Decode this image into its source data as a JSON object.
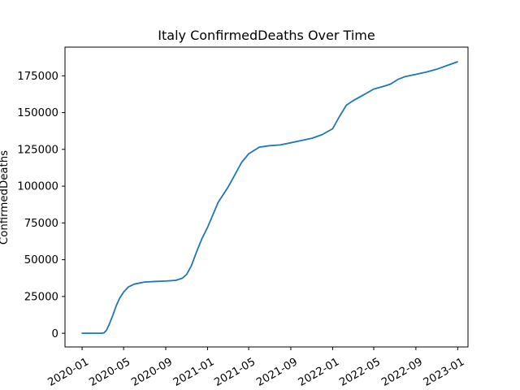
{
  "chart_data": {
    "type": "line",
    "title": "Italy  ConfirmedDeaths Over Time",
    "xlabel": "",
    "ylabel": "ConfirmedDeaths",
    "x_ticks": [
      "2020-01",
      "2020-05",
      "2020-09",
      "2021-01",
      "2021-05",
      "2021-09",
      "2022-01",
      "2022-05",
      "2022-09",
      "2023-01"
    ],
    "y_ticks": [
      "0",
      "25000",
      "50000",
      "75000",
      "100000",
      "125000",
      "150000",
      "175000"
    ],
    "ylim": [
      -9300,
      194500
    ],
    "xlim": [
      "2019-11-12",
      "2023-01-31"
    ],
    "grid": false,
    "series": [
      {
        "color": "#1f77b4",
        "points": [
          [
            "2020-01-01",
            0
          ],
          [
            "2020-02-20",
            0
          ],
          [
            "2020-02-28",
            50
          ],
          [
            "2020-03-05",
            300
          ],
          [
            "2020-03-12",
            2000
          ],
          [
            "2020-03-20",
            6000
          ],
          [
            "2020-03-31",
            12500
          ],
          [
            "2020-04-10",
            19000
          ],
          [
            "2020-04-20",
            24000
          ],
          [
            "2020-05-01",
            28000
          ],
          [
            "2020-05-15",
            31500
          ],
          [
            "2020-06-01",
            33400
          ],
          [
            "2020-07-01",
            34800
          ],
          [
            "2020-08-01",
            35200
          ],
          [
            "2020-09-01",
            35500
          ],
          [
            "2020-10-01",
            36000
          ],
          [
            "2020-10-20",
            37500
          ],
          [
            "2020-11-01",
            40000
          ],
          [
            "2020-11-15",
            46000
          ],
          [
            "2020-12-01",
            56000
          ],
          [
            "2020-12-15",
            64000
          ],
          [
            "2021-01-01",
            72000
          ],
          [
            "2021-02-01",
            89000
          ],
          [
            "2021-03-01",
            99000
          ],
          [
            "2021-03-20",
            107000
          ],
          [
            "2021-04-10",
            116000
          ],
          [
            "2021-05-01",
            122000
          ],
          [
            "2021-06-01",
            126500
          ],
          [
            "2021-07-01",
            127500
          ],
          [
            "2021-08-01",
            128000
          ],
          [
            "2021-09-01",
            129500
          ],
          [
            "2021-10-01",
            131000
          ],
          [
            "2021-11-01",
            132500
          ],
          [
            "2021-12-01",
            135000
          ],
          [
            "2022-01-01",
            139000
          ],
          [
            "2022-01-20",
            147000
          ],
          [
            "2022-02-10",
            155000
          ],
          [
            "2022-03-01",
            158000
          ],
          [
            "2022-04-01",
            162000
          ],
          [
            "2022-05-01",
            166000
          ],
          [
            "2022-06-01",
            168000
          ],
          [
            "2022-06-20",
            169500
          ],
          [
            "2022-07-10",
            172500
          ],
          [
            "2022-08-01",
            174500
          ],
          [
            "2022-09-01",
            176000
          ],
          [
            "2022-10-01",
            177500
          ],
          [
            "2022-11-01",
            179500
          ],
          [
            "2022-12-01",
            182000
          ],
          [
            "2022-12-31",
            184500
          ]
        ]
      }
    ]
  }
}
